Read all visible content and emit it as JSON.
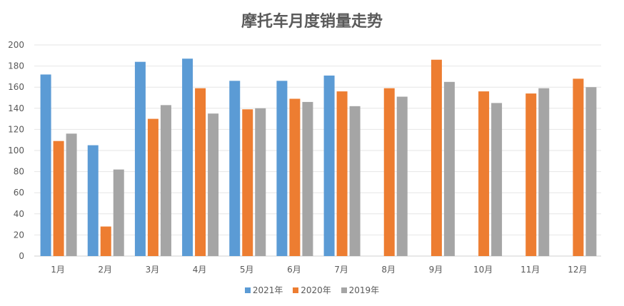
{
  "chart_data": {
    "type": "bar",
    "title": "摩托车月度销量走势",
    "xlabel": "",
    "ylabel": "",
    "ylim": [
      0,
      200
    ],
    "yticks": [
      0,
      20,
      40,
      60,
      80,
      100,
      120,
      140,
      160,
      180,
      200
    ],
    "grid": true,
    "legend_position": "bottom",
    "categories": [
      "1月",
      "2月",
      "3月",
      "4月",
      "5月",
      "6月",
      "7月",
      "8月",
      "9月",
      "10月",
      "11月",
      "12月"
    ],
    "series": [
      {
        "name": "2021年",
        "color": "#5b9bd5",
        "values": [
          172,
          105,
          184,
          187,
          166,
          166,
          171,
          null,
          null,
          null,
          null,
          null
        ]
      },
      {
        "name": "2020年",
        "color": "#ed7d31",
        "values": [
          109,
          28,
          130,
          159,
          139,
          149,
          156,
          159,
          186,
          156,
          154,
          168
        ]
      },
      {
        "name": "2019年",
        "color": "#a5a5a5",
        "values": [
          116,
          82,
          143,
          135,
          140,
          146,
          142,
          151,
          165,
          145,
          159,
          160
        ]
      }
    ]
  }
}
